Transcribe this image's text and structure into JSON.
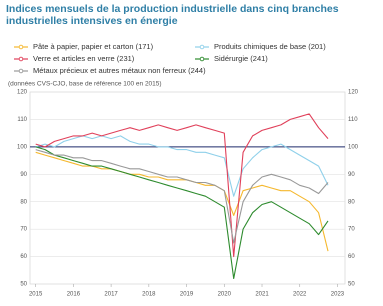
{
  "chart_data": {
    "type": "line",
    "title": "Indices mensuels de la production industrielle dans cinq branches industrielles intensives en énergie",
    "subtitle": "(données CVS-CJO, base de référence 100 en 2015)",
    "x": [
      2015,
      2015.25,
      2015.5,
      2015.75,
      2016,
      2016.25,
      2016.5,
      2016.75,
      2017,
      2017.25,
      2017.5,
      2017.75,
      2018,
      2018.25,
      2018.5,
      2018.75,
      2019,
      2019.25,
      2019.5,
      2019.75,
      2020,
      2020.25,
      2020.5,
      2020.75,
      2021,
      2021.25,
      2021.5,
      2021.75,
      2022,
      2022.25,
      2022.5,
      2022.75
    ],
    "series": [
      {
        "name": "Pâte à papier, papier et carton (171)",
        "color": "#f5b82e",
        "values": [
          98,
          97,
          96,
          95,
          94,
          93,
          93,
          92,
          92,
          91,
          90,
          90,
          89,
          89,
          88,
          88,
          88,
          87,
          86,
          86,
          84,
          75,
          84,
          85,
          86,
          85,
          84,
          84,
          82,
          80,
          76,
          62
        ]
      },
      {
        "name": "Produits chimiques de base (201)",
        "color": "#8fd0ea",
        "values": [
          100,
          101,
          100,
          102,
          103,
          104,
          103,
          104,
          103,
          104,
          102,
          101,
          101,
          100,
          100,
          99,
          99,
          98,
          98,
          97,
          96,
          82,
          92,
          96,
          99,
          100,
          101,
          99,
          97,
          95,
          93,
          86
        ]
      },
      {
        "name": "Verre et articles en verre (231)",
        "color": "#e0405a",
        "values": [
          101,
          100,
          102,
          103,
          104,
          104,
          105,
          104,
          105,
          106,
          107,
          106,
          107,
          108,
          107,
          106,
          107,
          108,
          107,
          106,
          105,
          60,
          98,
          104,
          106,
          107,
          108,
          110,
          111,
          112,
          107,
          103
        ]
      },
      {
        "name": "Sidérurgie (241)",
        "color": "#2e8b2e",
        "values": [
          100,
          99,
          97,
          96,
          95,
          94,
          93,
          93,
          92,
          91,
          90,
          89,
          88,
          87,
          86,
          85,
          84,
          83,
          82,
          80,
          78,
          52,
          70,
          76,
          79,
          80,
          78,
          76,
          74,
          72,
          68,
          73
        ]
      },
      {
        "name": "Métaux précieux et autres métaux non ferreux (244)",
        "color": "#999999",
        "values": [
          99,
          98,
          97,
          97,
          96,
          96,
          95,
          95,
          94,
          93,
          92,
          92,
          91,
          90,
          89,
          89,
          88,
          87,
          87,
          86,
          84,
          65,
          80,
          86,
          89,
          90,
          89,
          88,
          86,
          85,
          83,
          87
        ]
      }
    ],
    "xlim": [
      2014.85,
      2023.2
    ],
    "xticks": [
      2015,
      2016,
      2017,
      2018,
      2019,
      2020,
      2021,
      2022,
      2023
    ],
    "ylim": [
      50,
      120
    ],
    "yticks": [
      50,
      60,
      70,
      80,
      90,
      100,
      110,
      120
    ],
    "reference_line": 100,
    "reference_color": "#1f2a6b",
    "grid": true
  }
}
